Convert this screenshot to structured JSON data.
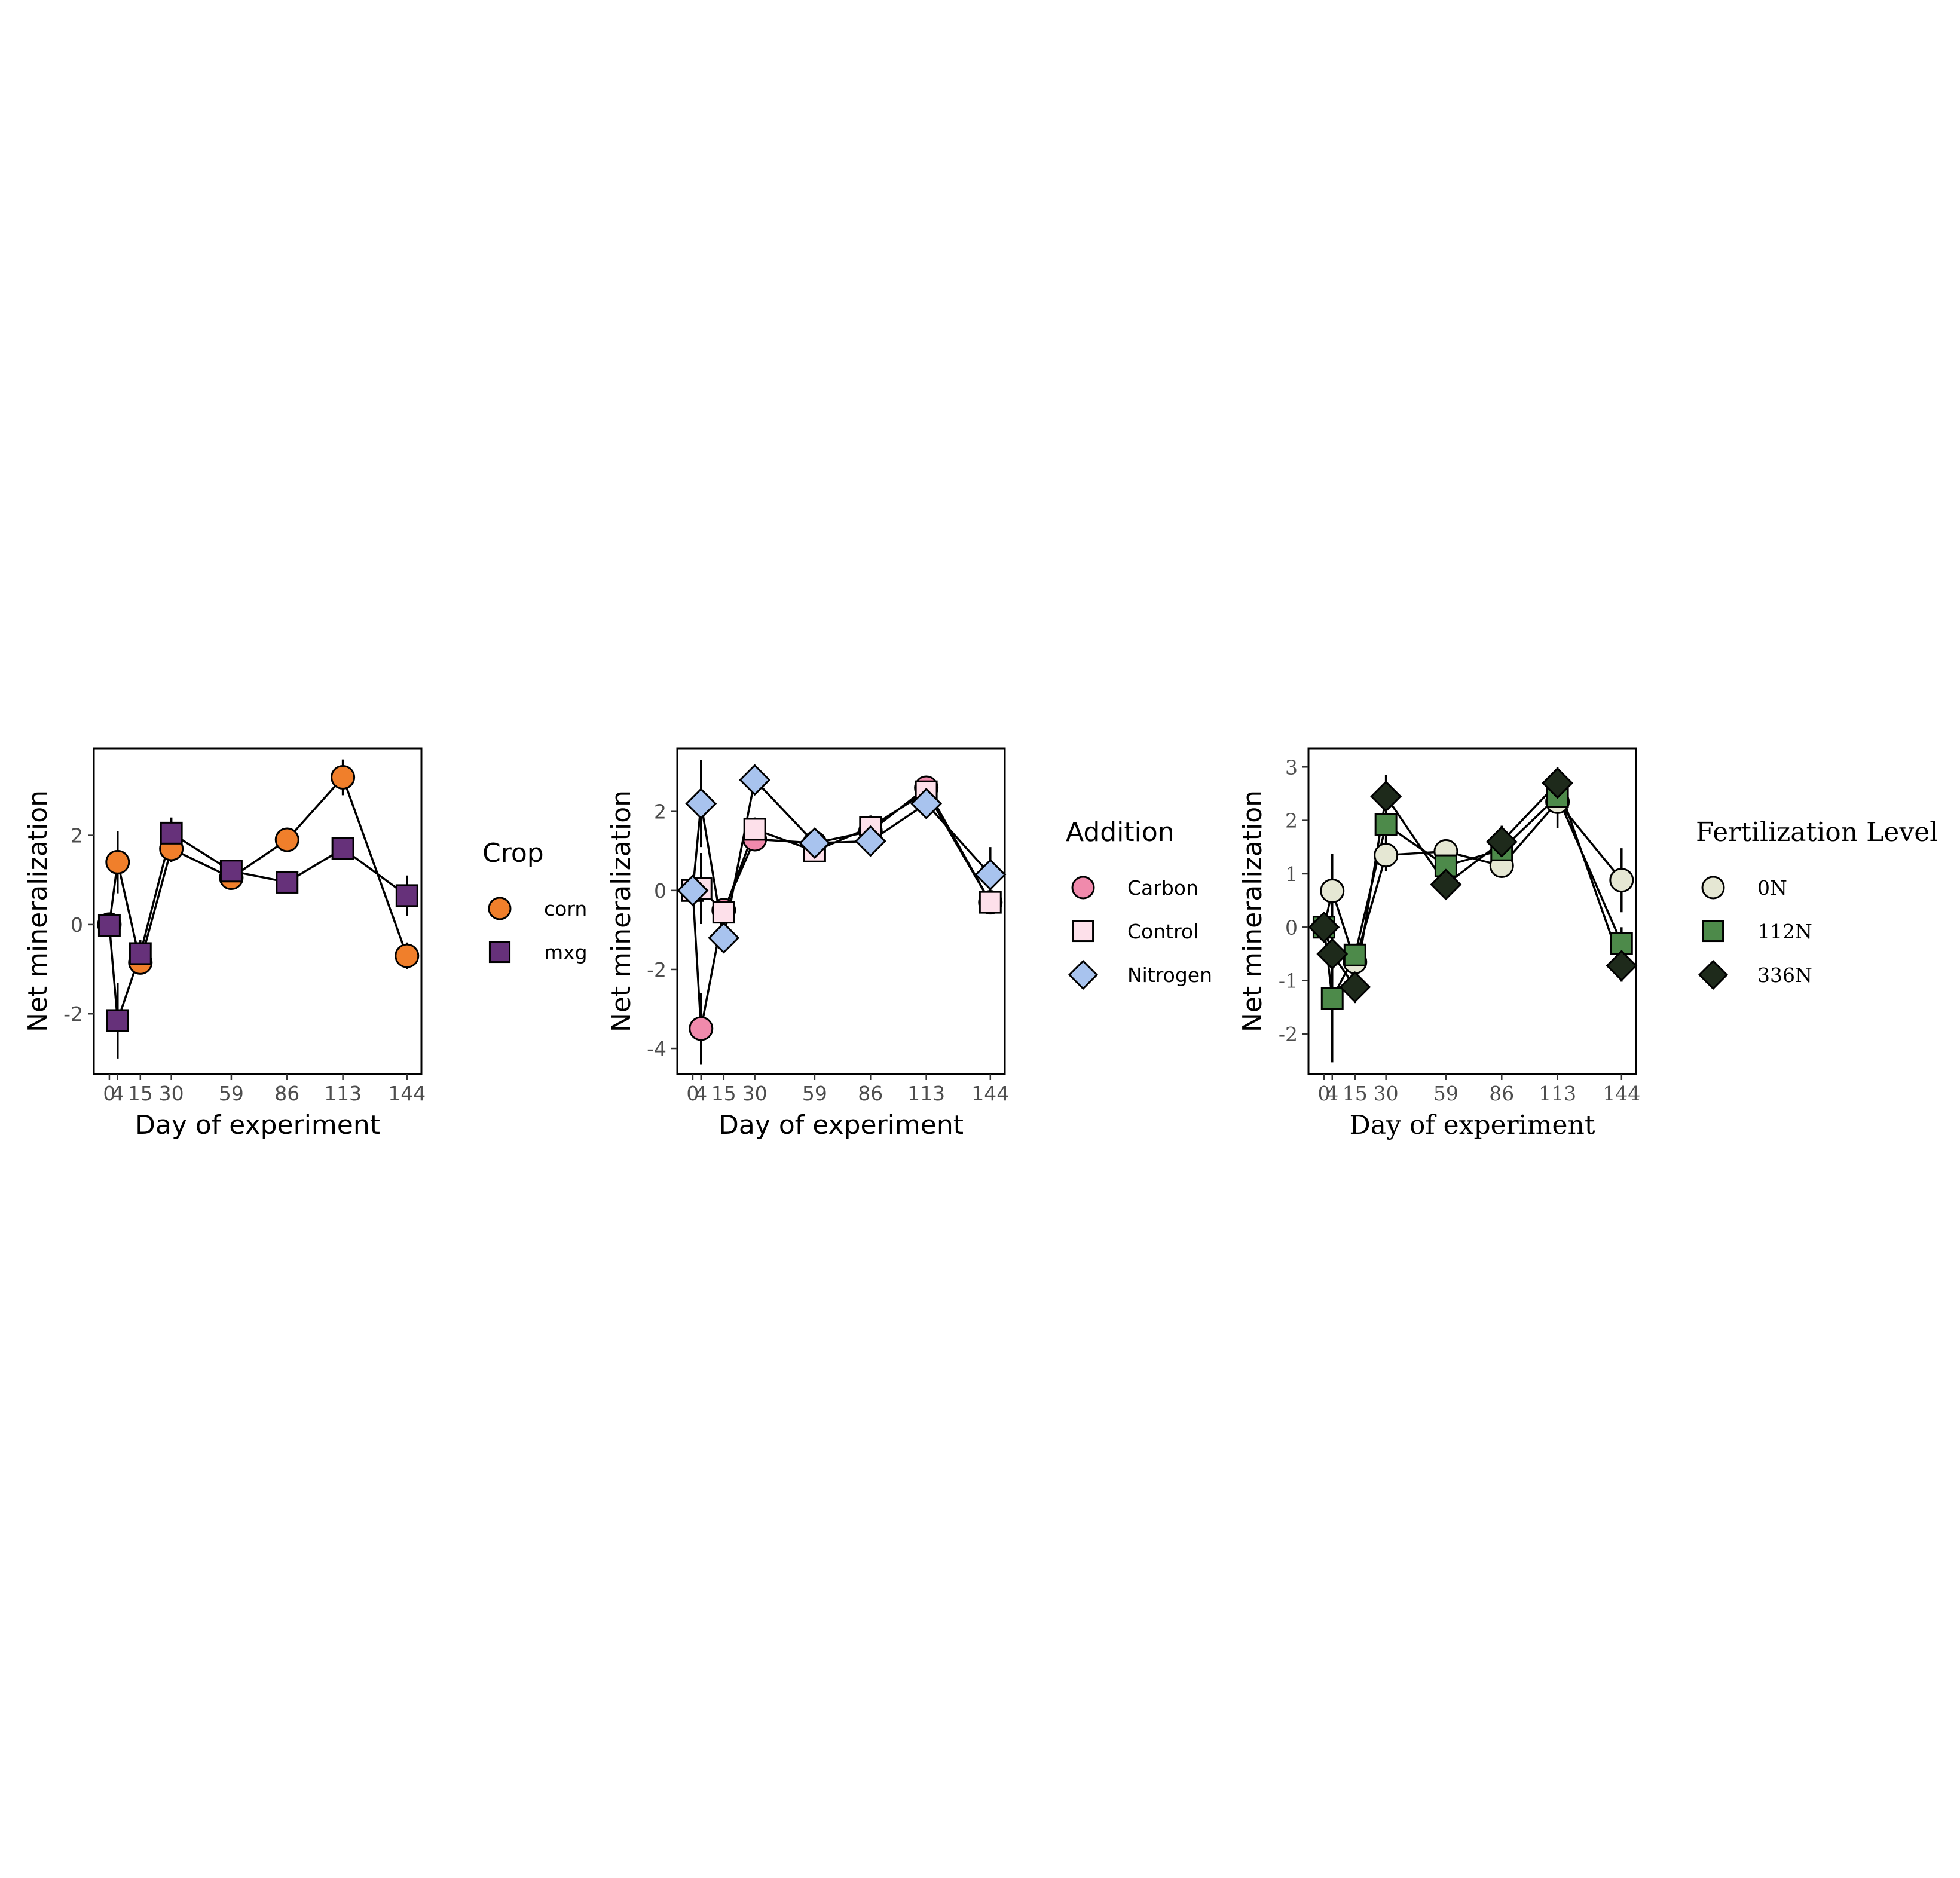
{
  "chart_data": [
    {
      "type": "line",
      "xlabel": "Day of experiment",
      "ylabel": "Net mineralization",
      "x_ticks": [
        0,
        4,
        15,
        30,
        59,
        86,
        113,
        144
      ],
      "xlim": [
        -7.5,
        151
      ],
      "ylim": [
        -3.35,
        3.95
      ],
      "y_ticks": [
        -2,
        0,
        2
      ],
      "y_tick_labels": [
        "-2",
        "0",
        "2"
      ],
      "grid": false,
      "legend": {
        "title": "Crop",
        "position": "right"
      },
      "series": [
        {
          "name": "corn",
          "shape": "circle",
          "color": "#f07f2b",
          "x": [
            0,
            4,
            15,
            30,
            59,
            86,
            113,
            144
          ],
          "y": [
            0.0,
            1.4,
            -0.85,
            1.7,
            1.05,
            1.9,
            3.3,
            -0.7
          ],
          "err": [
            0.2,
            0.7,
            0.2,
            0.3,
            0.2,
            0.2,
            0.4,
            0.3
          ]
        },
        {
          "name": "mxg",
          "shape": "square",
          "color": "#66317a",
          "x": [
            0,
            4,
            15,
            30,
            59,
            86,
            113,
            144
          ],
          "y": [
            -0.02,
            -2.15,
            -0.65,
            2.05,
            1.2,
            0.95,
            1.7,
            0.65
          ],
          "err": [
            0.2,
            0.85,
            0.3,
            0.35,
            0.2,
            0.2,
            0.2,
            0.45
          ]
        }
      ]
    },
    {
      "type": "line",
      "xlabel": "Day of experiment",
      "ylabel": "Net mineralization",
      "x_ticks": [
        0,
        4,
        15,
        30,
        59,
        86,
        113,
        144
      ],
      "xlim": [
        -7.5,
        151
      ],
      "ylim": [
        -4.65,
        3.6
      ],
      "y_ticks": [
        -4,
        -2,
        0,
        2
      ],
      "y_tick_labels": [
        "-4",
        "-2",
        "0",
        "2"
      ],
      "grid": false,
      "legend": {
        "title": "Addition",
        "position": "right"
      },
      "series": [
        {
          "name": "Carbon",
          "shape": "circle",
          "color": "#f08aac",
          "x": [
            0,
            4,
            15,
            30,
            59,
            86,
            113,
            144
          ],
          "y": [
            0.0,
            -3.5,
            -0.5,
            1.3,
            1.2,
            1.5,
            2.6,
            -0.3
          ],
          "err": [
            0.2,
            0.9,
            0.3,
            0.3,
            0.2,
            0.3,
            0.3,
            0.2
          ]
        },
        {
          "name": "Control",
          "shape": "square",
          "color": "#fde0ea",
          "x": [
            0,
            4,
            15,
            30,
            59,
            86,
            113,
            144
          ],
          "y": [
            0.0,
            0.05,
            -0.55,
            1.55,
            1.0,
            1.6,
            2.5,
            -0.3
          ],
          "err": [
            0.2,
            0.9,
            0.3,
            0.3,
            0.2,
            0.3,
            0.3,
            0.2
          ]
        },
        {
          "name": "Nitrogen",
          "shape": "diamond",
          "color": "#a8c3ee",
          "x": [
            0,
            4,
            15,
            30,
            59,
            86,
            113,
            144
          ],
          "y": [
            0.0,
            2.2,
            -1.2,
            2.8,
            1.2,
            1.25,
            2.2,
            0.4
          ],
          "err": [
            0.2,
            1.1,
            0.3,
            0.3,
            0.2,
            0.2,
            0.3,
            0.7
          ]
        }
      ]
    },
    {
      "type": "line",
      "xlabel": "Day of experiment",
      "ylabel": "Net mineralization",
      "x_ticks": [
        0,
        4,
        15,
        30,
        59,
        86,
        113,
        144
      ],
      "xlim": [
        -7.5,
        151
      ],
      "ylim": [
        -2.75,
        3.35
      ],
      "y_ticks": [
        -2,
        -1,
        0,
        1,
        2,
        3
      ],
      "y_tick_labels": [
        "-2",
        "-1",
        "0",
        "1",
        "2",
        "3"
      ],
      "grid": false,
      "legend": {
        "title": "Fertilization Level",
        "position": "right"
      },
      "series": [
        {
          "name": "0N",
          "shape": "circle",
          "color": "#e5e7d3",
          "x": [
            0,
            4,
            15,
            30,
            59,
            86,
            113,
            144
          ],
          "y": [
            0.0,
            0.68,
            -0.65,
            1.35,
            1.42,
            1.15,
            2.35,
            0.88
          ],
          "err": [
            0.2,
            0.7,
            0.2,
            0.3,
            0.2,
            0.2,
            0.5,
            0.6
          ]
        },
        {
          "name": "112N",
          "shape": "square",
          "color": "#4d8a4a",
          "x": [
            0,
            4,
            15,
            30,
            59,
            86,
            113,
            144
          ],
          "y": [
            0.0,
            -1.33,
            -0.52,
            1.92,
            1.15,
            1.45,
            2.45,
            -0.3
          ],
          "err": [
            0.2,
            1.2,
            0.2,
            0.4,
            0.2,
            0.3,
            0.3,
            0.3
          ]
        },
        {
          "name": "336N",
          "shape": "diamond",
          "color": "#1e2a1b",
          "x": [
            0,
            4,
            15,
            30,
            59,
            86,
            113,
            144
          ],
          "y": [
            0.0,
            -0.5,
            -1.12,
            2.45,
            0.8,
            1.6,
            2.7,
            -0.72
          ],
          "err": [
            0.2,
            0.5,
            0.3,
            0.4,
            0.2,
            0.3,
            0.3,
            0.3
          ]
        }
      ]
    }
  ]
}
